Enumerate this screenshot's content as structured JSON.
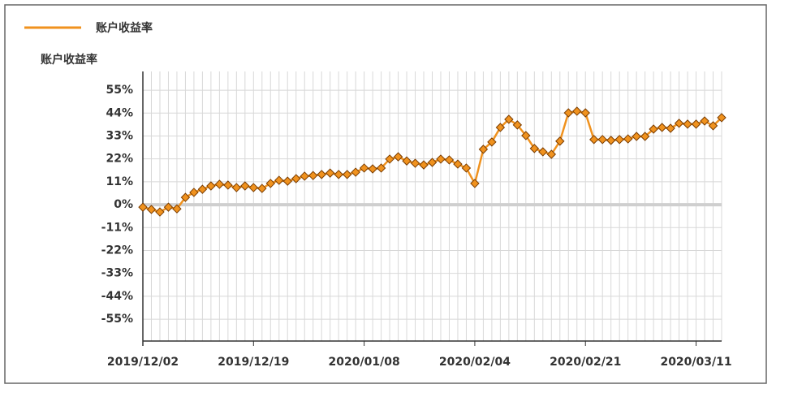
{
  "chart_data": {
    "type": "line",
    "y_label": "账户收益率",
    "legend": "top-left",
    "grid": true,
    "categories": [
      "2019/12/02",
      null,
      null,
      null,
      null,
      null,
      null,
      null,
      null,
      null,
      null,
      null,
      null,
      "2019/12/19",
      null,
      null,
      null,
      null,
      null,
      null,
      null,
      null,
      null,
      null,
      null,
      null,
      "2020/01/08",
      null,
      null,
      null,
      null,
      null,
      null,
      null,
      null,
      null,
      null,
      null,
      null,
      "2020/02/04",
      null,
      null,
      null,
      null,
      null,
      null,
      null,
      null,
      null,
      null,
      null,
      null,
      "2020/02/21",
      null,
      null,
      null,
      null,
      null,
      null,
      null,
      null,
      null,
      null,
      null,
      null,
      "2020/03/11",
      null,
      null,
      null
    ],
    "series": [
      {
        "name": "账户收益率",
        "color": "#f0921e",
        "values": [
          -1.2,
          -2.3,
          -3.5,
          -1.2,
          -2,
          3.5,
          5.9,
          7.4,
          9,
          9.8,
          9.4,
          8.2,
          9,
          8.2,
          7.8,
          10.2,
          11.7,
          11.3,
          12.5,
          13.7,
          14,
          14.5,
          15.2,
          14.5,
          14.5,
          15.6,
          17.6,
          17.2,
          17.6,
          21.9,
          23,
          21,
          19.9,
          19.1,
          20.3,
          21.9,
          21.5,
          19.5,
          17.6,
          10.2,
          26.6,
          30.1,
          37.1,
          41,
          38.3,
          33.2,
          27,
          25.4,
          24.2,
          30.5,
          44.1,
          44.9,
          44.1,
          31.3,
          31.3,
          30.9,
          31.3,
          31.6,
          32.8,
          32.8,
          36.3,
          37.1,
          36.7,
          39.1,
          38.7,
          38.7,
          40.2,
          37.9,
          41.8
        ]
      }
    ],
    "ylim": [
      -65.5,
      64
    ],
    "yticks": [
      {
        "value": 55,
        "label": "55%"
      },
      {
        "value": 44,
        "label": "44%"
      },
      {
        "value": 33,
        "label": "33%"
      },
      {
        "value": 22,
        "label": "22%"
      },
      {
        "value": 11,
        "label": "11%"
      },
      {
        "value": 0,
        "label": "0%"
      },
      {
        "value": -11,
        "label": "-11%"
      },
      {
        "value": -22,
        "label": "-22%"
      },
      {
        "value": -33,
        "label": "-33%"
      },
      {
        "value": -44,
        "label": "-44%"
      },
      {
        "value": -55,
        "label": "-55%"
      }
    ]
  }
}
